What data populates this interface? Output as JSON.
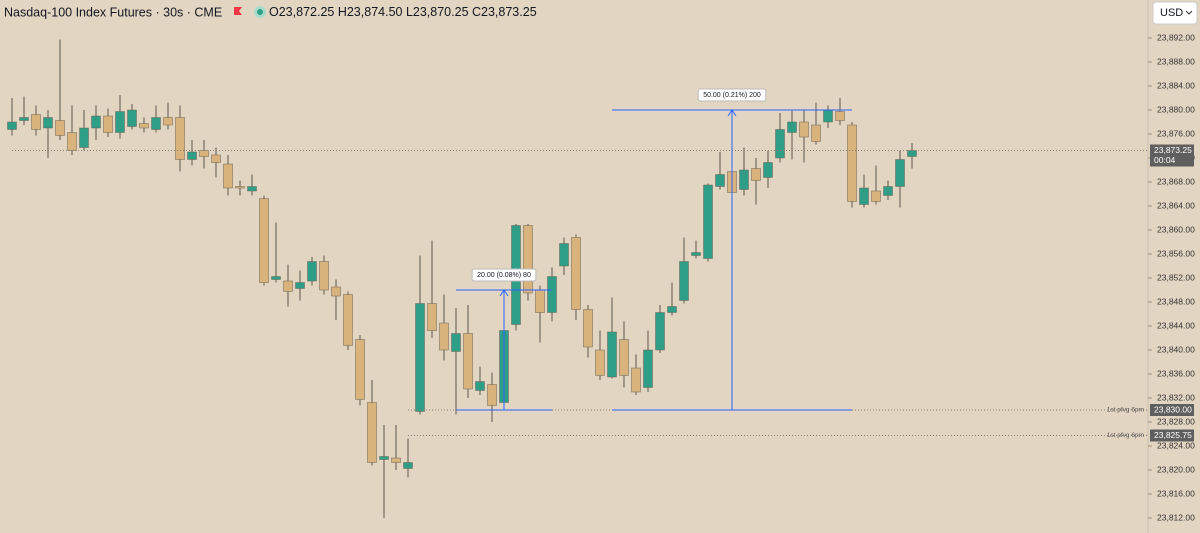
{
  "header": {
    "symbol": "Nasdaq-100 Index Futures · 30s · CME",
    "ohlc": [
      {
        "key": "O",
        "value": "23,872.25"
      },
      {
        "key": "H",
        "value": "23,874.50"
      },
      {
        "key": "L",
        "value": "23,870.25"
      },
      {
        "key": "C",
        "value": "23,873.25"
      }
    ],
    "currency": "USD"
  },
  "chart_data": {
    "type": "candlestick",
    "open": [
      23876.75,
      23878.25,
      23879.25,
      23877,
      23878.25,
      23876.25,
      23873.75,
      23877,
      23879,
      23876.25,
      23877.25,
      23877.75,
      23876.75,
      23878.75,
      23878.75,
      23871.75,
      23873.25,
      23872.5,
      23871,
      23867.25,
      23866.5,
      23865.25,
      23851.75,
      23851.5,
      23850.25,
      23851.5,
      23854.75,
      23850.5,
      23849.25,
      23841.75,
      23831.25,
      23821.75,
      23822,
      23820.25,
      23829.75,
      23847.75,
      23844.5,
      23839.75,
      23842.75,
      23833.25,
      23834.25,
      23831.25,
      23844.25,
      23860.75,
      23850,
      23846.25,
      23854,
      23858.75,
      23846.75,
      23840,
      23835.5,
      23841.75,
      23837,
      23833.75,
      23840,
      23846.25,
      23848.25,
      23855.75,
      23855.25,
      23867.25,
      23869.75,
      23866.75,
      23870.25,
      23868.75,
      23872,
      23876.25,
      23878,
      23877.5,
      23878,
      23879.75,
      23877.5,
      23864.25,
      23866.5,
      23865.75,
      23867.25,
      23872.25
    ],
    "high": [
      23882,
      23882.25,
      23880.75,
      23880,
      23891.75,
      23880.75,
      23880,
      23880.75,
      23880.25,
      23882.5,
      23881,
      23878.75,
      23880.75,
      23881.25,
      23880.75,
      23875,
      23875,
      23873.75,
      23872.5,
      23868.25,
      23869.25,
      23865.75,
      23861.25,
      23854.25,
      23853.25,
      23855.5,
      23855.75,
      23851.75,
      23849.75,
      23842.5,
      23835,
      23827.5,
      23827.5,
      23825.25,
      23855.75,
      23858.25,
      23849.25,
      23847,
      23847.5,
      23837.25,
      23836.25,
      23849.75,
      23861,
      23861,
      23850.75,
      23853.75,
      23858.75,
      23859.25,
      23847.5,
      23843.25,
      23848.75,
      23844.75,
      23839.25,
      23843.25,
      23847.5,
      23851.25,
      23858.75,
      23858.25,
      23867.75,
      23873,
      23870.75,
      23873.75,
      23872,
      23873.25,
      23879.5,
      23880,
      23880,
      23881.25,
      23880.75,
      23882,
      23878,
      23869.25,
      23870.75,
      23868.25,
      23873.25,
      23874.5
    ],
    "low": [
      23875.75,
      23877.5,
      23875.75,
      23872,
      23875,
      23872.5,
      23873.25,
      23875,
      23875.5,
      23875.25,
      23876.75,
      23876.25,
      23876.25,
      23876.75,
      23869.75,
      23870.75,
      23870.25,
      23868.75,
      23865.75,
      23865.75,
      23865.75,
      23850.75,
      23851.25,
      23847.25,
      23848.25,
      23850.75,
      23849.25,
      23845,
      23840,
      23830.75,
      23820.75,
      23812,
      23820,
      23818.75,
      23829.25,
      23842,
      23838.25,
      23829.25,
      23832,
      23832.5,
      23828,
      23830,
      23843.25,
      23848.25,
      23841.25,
      23844.75,
      23852.5,
      23845,
      23838.75,
      23835,
      23835.25,
      23833.75,
      23832.5,
      23833,
      23839.5,
      23845.75,
      23847.75,
      23855.25,
      23854.75,
      23866.75,
      23862.5,
      23865.75,
      23864.25,
      23867,
      23871.25,
      23871.75,
      23871.25,
      23874.25,
      23877,
      23877.5,
      23863.75,
      23863.75,
      23864.25,
      23865,
      23863.75,
      23870.25
    ],
    "close": [
      23878,
      23878.75,
      23876.75,
      23878.75,
      23875.75,
      23873.25,
      23877,
      23879,
      23876.25,
      23879.75,
      23880,
      23877,
      23878.75,
      23877.5,
      23871.75,
      23873,
      23872.25,
      23871.25,
      23867,
      23867,
      23867.25,
      23851.25,
      23852.25,
      23849.75,
      23851.25,
      23854.75,
      23850,
      23849,
      23840.75,
      23831.75,
      23821.25,
      23822.25,
      23821.25,
      23821.25,
      23847.75,
      23843.25,
      23840,
      23842.75,
      23833.5,
      23834.75,
      23830.75,
      23843.25,
      23860.75,
      23849.5,
      23846.25,
      23852.25,
      23857.75,
      23846.75,
      23840.5,
      23835.75,
      23843,
      23835.75,
      23833,
      23840,
      23846.25,
      23847.25,
      23854.75,
      23856.25,
      23867.5,
      23869.25,
      23866.25,
      23870,
      23868.25,
      23871.25,
      23876.75,
      23878,
      23875.5,
      23874.75,
      23880,
      23878.25,
      23864.75,
      23867,
      23864.75,
      23867.25,
      23871.75,
      23873.25
    ],
    "up_color": "#2f9e87",
    "down_color": "#d8b37c",
    "ylim": [
      23809.5,
      23898
    ],
    "yticks": [
      {
        "value": 23812,
        "label": "23,812.00"
      },
      {
        "value": 23816,
        "label": "23,816.00"
      },
      {
        "value": 23820,
        "label": "23,820.00"
      },
      {
        "value": 23824,
        "label": "23,824.00"
      },
      {
        "value": 23828,
        "label": "23,828.00"
      },
      {
        "value": 23832,
        "label": "23,832.00"
      },
      {
        "value": 23836,
        "label": "23,836.00"
      },
      {
        "value": 23840,
        "label": "23,840.00"
      },
      {
        "value": 23844,
        "label": "23,844.00"
      },
      {
        "value": 23848,
        "label": "23,848.00"
      },
      {
        "value": 23852,
        "label": "23,852.00"
      },
      {
        "value": 23856,
        "label": "23,856.00"
      },
      {
        "value": 23860,
        "label": "23,860.00"
      },
      {
        "value": 23864,
        "label": "23,864.00"
      },
      {
        "value": 23868,
        "label": "23,868.00"
      },
      {
        "value": 23872,
        "label": "23,872.00"
      },
      {
        "value": 23876,
        "label": "23,876.00"
      },
      {
        "value": 23880,
        "label": "23,880.00"
      },
      {
        "value": 23884,
        "label": "23,884.00"
      },
      {
        "value": 23888,
        "label": "23,888.00"
      },
      {
        "value": 23892,
        "label": "23,892.00"
      }
    ],
    "price_lines": [
      {
        "value": 23873.25,
        "label": "23,873.25",
        "countdown": "00:04",
        "start_index": 0
      },
      {
        "value": 23830,
        "label": "23,830.00",
        "name": "1st pfvg 6pm",
        "start_index": 33
      },
      {
        "value": 23825.75,
        "label": "23,825.75",
        "name": "1st pfvg 6pm",
        "start_index": 33
      }
    ],
    "measurements": [
      {
        "label": "20.00 (0.08%) 80",
        "from": 23830,
        "to": 23850,
        "start_index": 37,
        "end_index": 45
      },
      {
        "label": "50.00 (0.21%) 200",
        "from": 23830,
        "to": 23880,
        "start_index": 50,
        "end_index": 70
      }
    ]
  }
}
